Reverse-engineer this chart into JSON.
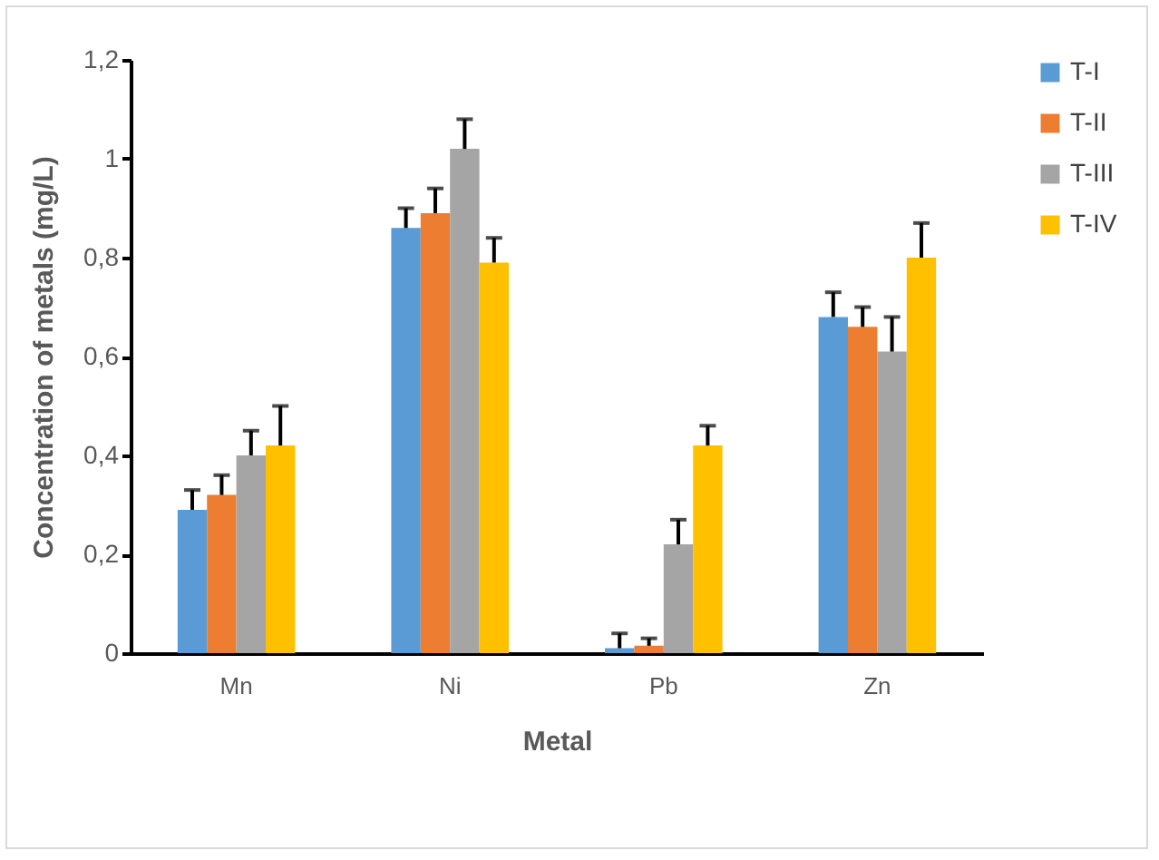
{
  "chart_data": {
    "type": "bar",
    "xlabel": "Metal",
    "ylabel": "Concentration of metals (mg/L)",
    "categories": [
      "Mn",
      "Ni",
      "Pb",
      "Zn"
    ],
    "series": [
      {
        "name": "T-I",
        "color": "#5b9bd5",
        "values": [
          0.29,
          0.86,
          0.01,
          0.68
        ],
        "errors": [
          [
            0.29,
            0.33
          ],
          [
            0.86,
            0.9
          ],
          [
            0.01,
            0.04
          ],
          [
            0.68,
            0.73
          ]
        ]
      },
      {
        "name": "T-II",
        "color": "#ed7d31",
        "values": [
          0.32,
          0.89,
          0.015,
          0.66
        ],
        "errors": [
          [
            0.32,
            0.36
          ],
          [
            0.89,
            0.94
          ],
          [
            0.015,
            0.03
          ],
          [
            0.66,
            0.7
          ]
        ]
      },
      {
        "name": "T-III",
        "color": "#a5a5a5",
        "values": [
          0.4,
          1.02,
          0.22,
          0.61
        ],
        "errors": [
          [
            0.4,
            0.45
          ],
          [
            1.02,
            1.08
          ],
          [
            0.22,
            0.27
          ],
          [
            0.61,
            0.68
          ]
        ]
      },
      {
        "name": "T-IV",
        "color": "#ffc000",
        "values": [
          0.42,
          0.79,
          0.42,
          0.8
        ],
        "errors": [
          [
            0.42,
            0.5
          ],
          [
            0.79,
            0.84
          ],
          [
            0.42,
            0.46
          ],
          [
            0.8,
            0.87
          ]
        ]
      }
    ],
    "ylim": [
      0,
      1.2
    ],
    "yticks": [
      0,
      {
        "value": 0.2,
        "label": "0,2"
      },
      {
        "value": 0.4,
        "label": "0,4"
      },
      {
        "value": 0.6,
        "label": "0,6"
      },
      {
        "value": 0.8,
        "label": "0,8"
      },
      1,
      {
        "value": 1.2,
        "label": "1,2"
      }
    ],
    "grid": false,
    "legend": "right"
  }
}
